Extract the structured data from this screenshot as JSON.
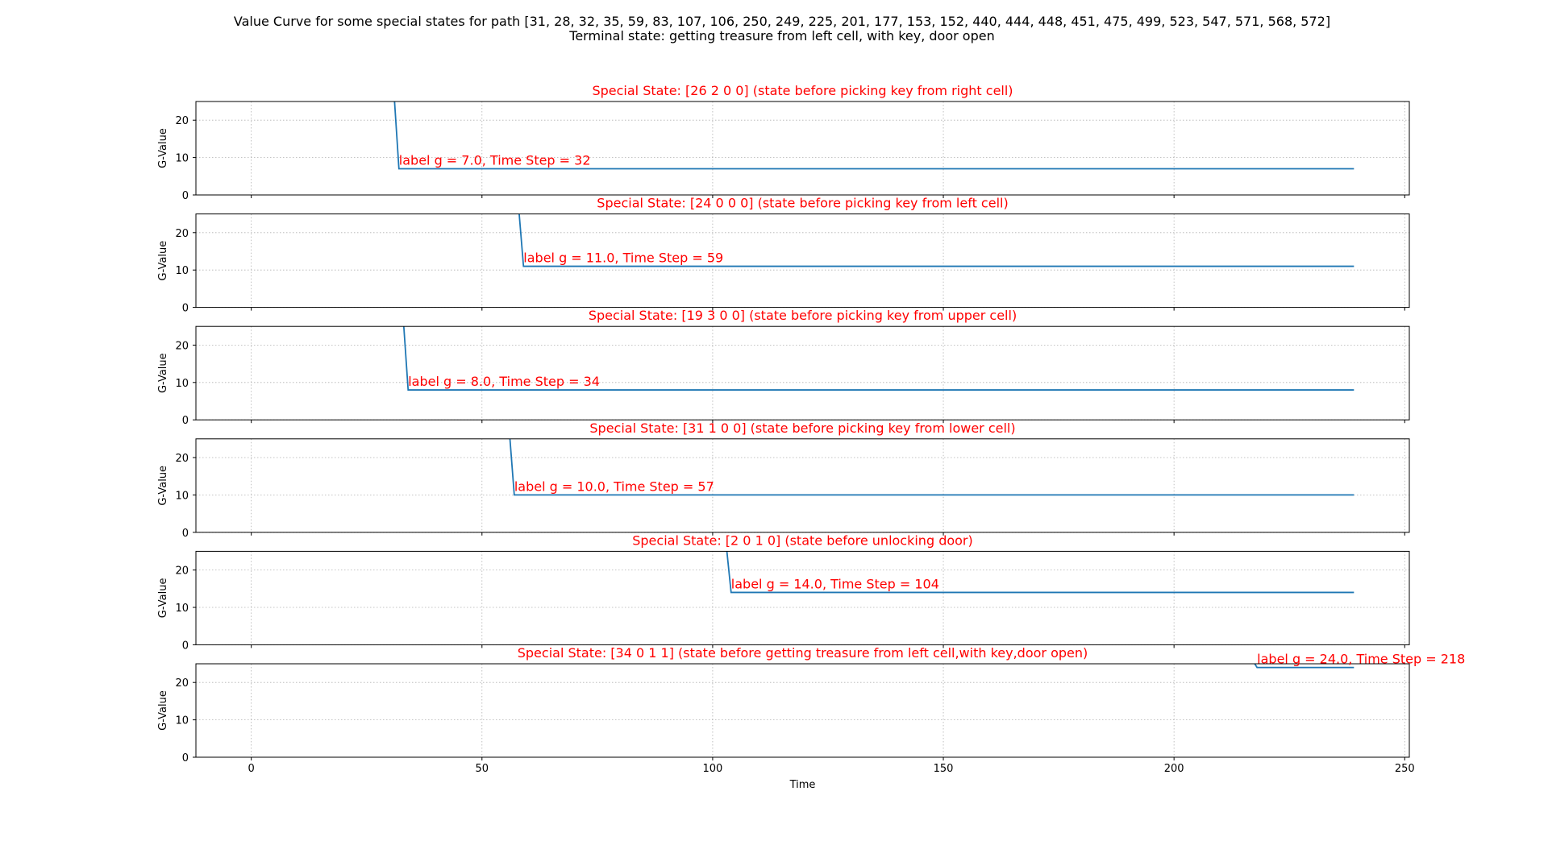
{
  "figure": {
    "title_line1": "Value Curve for some special states for path [31, 28, 32, 35, 59, 83, 107, 106, 250, 249, 225, 201, 177, 153, 152, 440, 444, 448, 451, 475, 499, 523, 547, 571, 568, 572]",
    "title_line2": "Terminal state: getting treasure from left cell, with key, door open"
  },
  "colors": {
    "line": "#1f77b4",
    "annotation": "#ff0000",
    "grid": "#b0b0b0",
    "axes": "#000000"
  },
  "chart_data": [
    {
      "type": "line",
      "title": "Special State: [26  2  0  0] (state before picking key from right cell)",
      "xlabel": "",
      "ylabel": "G-Value",
      "xlim": [
        -12,
        251
      ],
      "ylim": [
        0,
        25
      ],
      "grid": true,
      "yticks": [
        0,
        10,
        20
      ],
      "xticks": [
        0,
        50,
        100,
        150,
        200,
        250
      ],
      "show_xtick_labels": false,
      "series": [
        {
          "x": [
            31,
            32,
            239
          ],
          "y": [
            26,
            7,
            7
          ]
        }
      ],
      "annotation": {
        "text": "label g = 7.0, Time Step = 32",
        "x": 32,
        "y": 7
      }
    },
    {
      "type": "line",
      "title": "Special State: [24  0  0  0] (state before picking key from left cell)",
      "xlabel": "",
      "ylabel": "G-Value",
      "xlim": [
        -12,
        251
      ],
      "ylim": [
        0,
        25
      ],
      "grid": true,
      "yticks": [
        0,
        10,
        20
      ],
      "xticks": [
        0,
        50,
        100,
        150,
        200,
        250
      ],
      "show_xtick_labels": false,
      "series": [
        {
          "x": [
            58,
            59,
            239
          ],
          "y": [
            26,
            11,
            11
          ]
        }
      ],
      "annotation": {
        "text": "label g = 11.0, Time Step = 59",
        "x": 59,
        "y": 11
      }
    },
    {
      "type": "line",
      "title": "Special State: [19  3  0  0] (state before picking key from upper cell)",
      "xlabel": "",
      "ylabel": "G-Value",
      "xlim": [
        -12,
        251
      ],
      "ylim": [
        0,
        25
      ],
      "grid": true,
      "yticks": [
        0,
        10,
        20
      ],
      "xticks": [
        0,
        50,
        100,
        150,
        200,
        250
      ],
      "show_xtick_labels": false,
      "series": [
        {
          "x": [
            33,
            34,
            239
          ],
          "y": [
            26,
            8,
            8
          ]
        }
      ],
      "annotation": {
        "text": "label g = 8.0, Time Step = 34",
        "x": 34,
        "y": 8
      }
    },
    {
      "type": "line",
      "title": "Special State: [31  1  0  0] (state before picking key from lower cell)",
      "xlabel": "",
      "ylabel": "G-Value",
      "xlim": [
        -12,
        251
      ],
      "ylim": [
        0,
        25
      ],
      "grid": true,
      "yticks": [
        0,
        10,
        20
      ],
      "xticks": [
        0,
        50,
        100,
        150,
        200,
        250
      ],
      "show_xtick_labels": false,
      "series": [
        {
          "x": [
            56,
            57,
            239
          ],
          "y": [
            26,
            10,
            10
          ]
        }
      ],
      "annotation": {
        "text": "label g = 10.0, Time Step = 57",
        "x": 57,
        "y": 10
      }
    },
    {
      "type": "line",
      "title": "Special State: [2 0 1 0] (state before unlocking door)",
      "xlabel": "",
      "ylabel": "G-Value",
      "xlim": [
        -12,
        251
      ],
      "ylim": [
        0,
        25
      ],
      "grid": true,
      "yticks": [
        0,
        10,
        20
      ],
      "xticks": [
        0,
        50,
        100,
        150,
        200,
        250
      ],
      "show_xtick_labels": false,
      "series": [
        {
          "x": [
            103,
            104,
            239
          ],
          "y": [
            26,
            14,
            14
          ]
        }
      ],
      "annotation": {
        "text": "label g = 14.0, Time Step = 104",
        "x": 104,
        "y": 14
      }
    },
    {
      "type": "line",
      "title": "Special State: [34  0  1  1] (state before getting treasure from left cell,with key,door open)",
      "xlabel": "Time",
      "ylabel": "G-Value",
      "xlim": [
        -12,
        251
      ],
      "ylim": [
        0,
        25
      ],
      "grid": true,
      "yticks": [
        0,
        10,
        20
      ],
      "xticks": [
        0,
        50,
        100,
        150,
        200,
        250
      ],
      "show_xtick_labels": true,
      "series": [
        {
          "x": [
            217,
            218,
            239
          ],
          "y": [
            26,
            24,
            24
          ]
        }
      ],
      "annotation": {
        "text": "label g = 24.0, Time Step = 218",
        "x": 218,
        "y": 24
      }
    }
  ]
}
